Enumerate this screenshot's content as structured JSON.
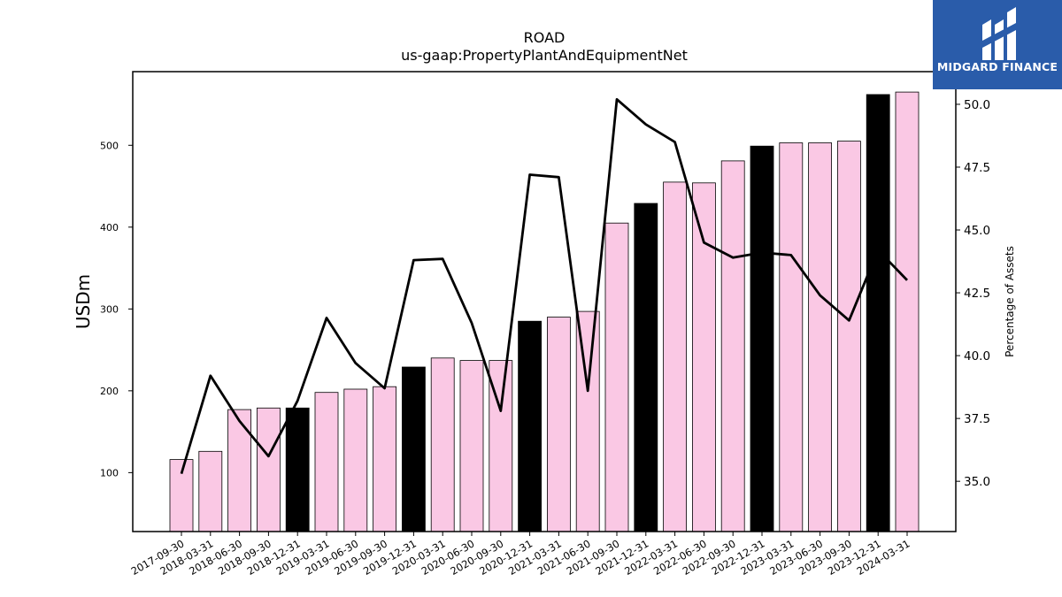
{
  "chart_data": {
    "type": "bar",
    "title": "ROAD",
    "subtitle": "us-gaap:PropertyPlantAndEquipmentNet",
    "ylabel": "USDm",
    "y2label": "Percentage of Assets",
    "categories": [
      "2017-09-30",
      "2018-03-31",
      "2018-06-30",
      "2018-09-30",
      "2018-12-31",
      "2019-03-31",
      "2019-06-30",
      "2019-09-30",
      "2019-12-31",
      "2020-03-31",
      "2020-06-30",
      "2020-09-30",
      "2020-12-31",
      "2021-03-31",
      "2021-06-30",
      "2021-09-30",
      "2021-12-31",
      "2022-03-31",
      "2022-06-30",
      "2022-09-30",
      "2022-12-31",
      "2023-03-31",
      "2023-06-30",
      "2023-09-30",
      "2023-12-31",
      "2024-03-31"
    ],
    "series": [
      {
        "type": "bar",
        "axis": "left",
        "values": [
          116,
          126,
          177,
          179,
          179,
          198,
          202,
          205,
          229,
          240,
          237,
          237,
          285,
          290,
          297,
          405,
          429,
          455,
          454,
          481,
          499,
          503,
          503,
          505,
          562,
          565
        ],
        "fill_colors": [
          "#fac8e4",
          "#fac8e4",
          "#fac8e4",
          "#fac8e4",
          "#000000",
          "#fac8e4",
          "#fac8e4",
          "#fac8e4",
          "#000000",
          "#fac8e4",
          "#fac8e4",
          "#fac8e4",
          "#000000",
          "#fac8e4",
          "#fac8e4",
          "#fac8e4",
          "#000000",
          "#fac8e4",
          "#fac8e4",
          "#fac8e4",
          "#000000",
          "#fac8e4",
          "#fac8e4",
          "#fac8e4",
          "#000000",
          "#fac8e4"
        ]
      },
      {
        "type": "line",
        "axis": "right",
        "color": "#000000",
        "values": [
          35.3,
          39.2,
          37.4,
          36.0,
          38.2,
          41.5,
          39.7,
          38.7,
          43.8,
          43.85,
          41.3,
          37.8,
          47.2,
          47.1,
          38.6,
          50.2,
          49.2,
          48.5,
          44.5,
          43.9,
          44.1,
          44.0,
          42.4,
          41.4,
          44.2,
          43.0
        ]
      }
    ],
    "ylim": [
      28,
      590
    ],
    "yticks": [
      100,
      200,
      300,
      400,
      500
    ],
    "y2lim": [
      33.0,
      51.3
    ],
    "y2ticks": [
      "35.0",
      "37.5",
      "40.0",
      "42.5",
      "45.0",
      "47.5",
      "50.0"
    ],
    "grid": false,
    "legend": "none"
  },
  "logo": {
    "text": "MIDGARD FINANCE",
    "background": "#2a5caa"
  }
}
